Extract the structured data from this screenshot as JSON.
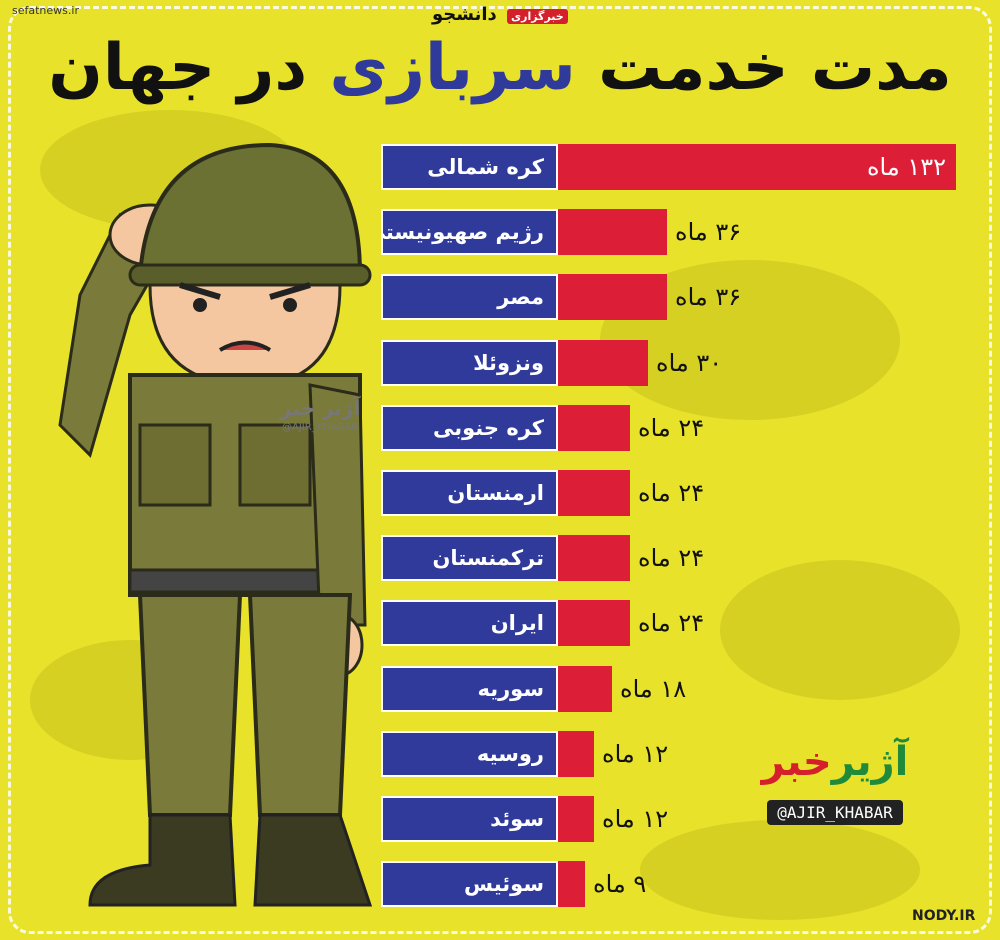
{
  "watermark_top": "sefatnews.ir",
  "top_brand": {
    "name": "دانشجو",
    "badge": "خبرگزاری"
  },
  "title": {
    "part1": "مدت خدمت",
    "highlight": "سربازی",
    "part2": "در جهان"
  },
  "colors": {
    "background": "#e8e22a",
    "label_bg": "#2f3a9a",
    "bar": "#dc1f36",
    "title_highlight": "#2f3a9a"
  },
  "chart_data": {
    "type": "bar",
    "categories": [
      "کره شمالی",
      "رژیم صهیونیستی",
      "مصر",
      "ونزوئلا",
      "کره جنوبی",
      "ارمنستان",
      "ترکمنستان",
      "ایران",
      "سوریه",
      "روسیه",
      "سوئد",
      "سوئیس"
    ],
    "values": [
      132,
      36,
      36,
      30,
      24,
      24,
      24,
      24,
      18,
      12,
      12,
      9
    ],
    "value_labels": [
      "۱۳۲ ماه",
      "۳۶ ماه",
      "۳۶ ماه",
      "۳۰ ماه",
      "۲۴ ماه",
      "۲۴ ماه",
      "۲۴ ماه",
      "۲۴ ماه",
      "۱۸ ماه",
      "۱۲ ماه",
      "۱۲ ماه",
      "۹ ماه"
    ],
    "unit": "ماه"
  },
  "logo": {
    "name_part1": "آژیر",
    "name_part2": "خبر",
    "handle": "@AJIR_KHABAR"
  },
  "watermark_mid": "آژیر خبر",
  "watermark_mid_handle": "@AJIR_KHABAR",
  "site_bottom": "NODY.IR"
}
